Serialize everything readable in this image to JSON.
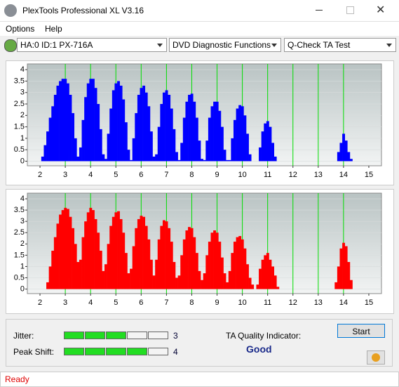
{
  "window": {
    "title": "PlexTools Professional XL V3.16",
    "menu": [
      "Options",
      "Help"
    ],
    "drive": "HA:0 ID:1  PX-716A",
    "function": "DVD Diagnostic Functions",
    "test": "Q-Check TA Test"
  },
  "chart_data": [
    {
      "type": "bar",
      "color": "#0000ff",
      "xlim": [
        1.5,
        15.5
      ],
      "xticks": [
        2,
        3,
        4,
        5,
        6,
        7,
        8,
        9,
        10,
        11,
        12,
        13,
        14,
        15
      ],
      "ylim": [
        -0.2,
        4.25
      ],
      "yticks": [
        0,
        0.5,
        1,
        1.5,
        2,
        2.5,
        3,
        3.5,
        4
      ],
      "grid": true,
      "vlines": [
        3,
        4,
        5,
        6,
        7,
        8,
        9,
        10,
        11,
        12,
        13,
        14
      ],
      "vline_color": "#00dd00",
      "x": [
        2.0,
        2.1,
        2.2,
        2.3,
        2.4,
        2.5,
        2.6,
        2.7,
        2.8,
        2.9,
        3.0,
        3.1,
        3.2,
        3.3,
        3.4,
        3.5,
        3.6,
        3.7,
        3.8,
        3.9,
        4.0,
        4.1,
        4.2,
        4.3,
        4.4,
        4.5,
        4.6,
        4.7,
        4.8,
        4.9,
        5.0,
        5.1,
        5.2,
        5.3,
        5.4,
        5.5,
        5.6,
        5.7,
        5.8,
        5.9,
        6.0,
        6.1,
        6.2,
        6.3,
        6.4,
        6.5,
        6.6,
        6.7,
        6.8,
        6.9,
        7.0,
        7.1,
        7.2,
        7.3,
        7.4,
        7.5,
        7.6,
        7.7,
        7.8,
        7.9,
        8.0,
        8.1,
        8.2,
        8.3,
        8.4,
        8.5,
        8.6,
        8.7,
        8.8,
        8.9,
        9.0,
        9.1,
        9.2,
        9.3,
        9.4,
        9.5,
        9.6,
        9.7,
        9.8,
        9.9,
        10.0,
        10.1,
        10.2,
        10.3,
        10.4,
        10.5,
        10.6,
        10.7,
        10.8,
        10.9,
        11.0,
        11.1,
        11.2,
        11.3,
        11.4,
        11.5,
        11.6,
        11.7,
        11.8,
        11.9,
        12.0,
        12.1,
        12.2,
        12.3,
        12.4,
        12.5,
        12.6,
        12.7,
        12.8,
        12.9,
        13.0,
        13.1,
        13.2,
        13.3,
        13.4,
        13.5,
        13.6,
        13.7,
        13.8,
        13.9,
        14.0,
        14.1,
        14.2,
        14.3,
        14.4,
        14.5,
        14.6,
        14.7
      ],
      "values": [
        0,
        0.2,
        0.7,
        1.3,
        1.9,
        2.4,
        2.9,
        3.3,
        3.5,
        3.6,
        3.6,
        3.4,
        2.9,
        2.1,
        1.0,
        0.2,
        0.6,
        1.8,
        2.8,
        3.4,
        3.6,
        3.6,
        3.2,
        2.5,
        1.4,
        0.3,
        0.1,
        1.2,
        2.3,
        3.1,
        3.4,
        3.5,
        3.3,
        2.7,
        1.7,
        0.5,
        0.05,
        1.0,
        2.1,
        2.9,
        3.2,
        3.3,
        3.0,
        2.4,
        1.3,
        0.2,
        0.3,
        1.5,
        2.5,
        3.0,
        3.1,
        2.9,
        2.3,
        1.4,
        0.4,
        0.05,
        0.8,
        1.9,
        2.6,
        2.9,
        2.95,
        2.6,
        1.9,
        0.9,
        0.1,
        0.05,
        0.9,
        1.9,
        2.4,
        2.6,
        2.6,
        2.2,
        1.5,
        0.5,
        0.05,
        0.05,
        1.0,
        1.8,
        2.3,
        2.45,
        2.4,
        2.0,
        1.2,
        0.3,
        0,
        0,
        0,
        0.6,
        1.3,
        1.65,
        1.75,
        1.5,
        0.8,
        0.2,
        0,
        0,
        0,
        0,
        0,
        0,
        0,
        0,
        0,
        0,
        0,
        0,
        0,
        0,
        0,
        0,
        0,
        0,
        0,
        0,
        0,
        0,
        0,
        0,
        0.4,
        0.8,
        1.2,
        0.9,
        0.4,
        0.1,
        0,
        0,
        0,
        0
      ]
    },
    {
      "type": "bar",
      "color": "#ff0000",
      "xlim": [
        1.5,
        15.5
      ],
      "xticks": [
        2,
        3,
        4,
        5,
        6,
        7,
        8,
        9,
        10,
        11,
        12,
        13,
        14,
        15
      ],
      "ylim": [
        -0.2,
        4.25
      ],
      "yticks": [
        0,
        0.5,
        1,
        1.5,
        2,
        2.5,
        3,
        3.5,
        4
      ],
      "grid": true,
      "vlines": [
        3,
        4,
        5,
        6,
        7,
        8,
        9,
        10,
        11,
        12,
        13,
        14
      ],
      "vline_color": "#00dd00",
      "x": [
        2.0,
        2.1,
        2.2,
        2.3,
        2.4,
        2.5,
        2.6,
        2.7,
        2.8,
        2.9,
        3.0,
        3.1,
        3.2,
        3.3,
        3.4,
        3.5,
        3.6,
        3.7,
        3.8,
        3.9,
        4.0,
        4.1,
        4.2,
        4.3,
        4.4,
        4.5,
        4.6,
        4.7,
        4.8,
        4.9,
        5.0,
        5.1,
        5.2,
        5.3,
        5.4,
        5.5,
        5.6,
        5.7,
        5.8,
        5.9,
        6.0,
        6.1,
        6.2,
        6.3,
        6.4,
        6.5,
        6.6,
        6.7,
        6.8,
        6.9,
        7.0,
        7.1,
        7.2,
        7.3,
        7.4,
        7.5,
        7.6,
        7.7,
        7.8,
        7.9,
        8.0,
        8.1,
        8.2,
        8.3,
        8.4,
        8.5,
        8.6,
        8.7,
        8.8,
        8.9,
        9.0,
        9.1,
        9.2,
        9.3,
        9.4,
        9.5,
        9.6,
        9.7,
        9.8,
        9.9,
        10.0,
        10.1,
        10.2,
        10.3,
        10.4,
        10.5,
        10.6,
        10.7,
        10.8,
        10.9,
        11.0,
        11.1,
        11.2,
        11.3,
        11.4,
        11.5,
        11.6,
        11.7,
        11.8,
        11.9,
        12.0,
        12.1,
        12.2,
        12.3,
        12.4,
        12.5,
        12.6,
        12.7,
        12.8,
        12.9,
        13.0,
        13.1,
        13.2,
        13.3,
        13.4,
        13.5,
        13.6,
        13.7,
        13.8,
        13.9,
        14.0,
        14.1,
        14.2,
        14.3,
        14.4,
        14.5,
        14.6,
        14.7
      ],
      "values": [
        0,
        0,
        0,
        0.3,
        1.0,
        1.7,
        2.3,
        2.9,
        3.3,
        3.5,
        3.6,
        3.55,
        3.2,
        2.7,
        2.0,
        1.2,
        1.3,
        2.3,
        3.0,
        3.4,
        3.6,
        3.5,
        3.1,
        2.5,
        1.7,
        0.8,
        1.1,
        2.0,
        2.8,
        3.2,
        3.4,
        3.45,
        3.1,
        2.5,
        1.6,
        0.7,
        0.9,
        1.9,
        2.7,
        3.1,
        3.25,
        3.2,
        2.8,
        2.2,
        1.3,
        0.6,
        1.3,
        2.2,
        2.8,
        3.05,
        3.0,
        2.7,
        2.1,
        1.2,
        0.5,
        0.6,
        1.5,
        2.2,
        2.6,
        2.75,
        2.7,
        2.3,
        1.6,
        0.8,
        0.4,
        0.7,
        1.5,
        2.1,
        2.5,
        2.6,
        2.5,
        2.1,
        1.4,
        0.7,
        0.3,
        0.8,
        1.6,
        2.1,
        2.3,
        2.35,
        2.2,
        1.8,
        1.1,
        0.5,
        0.2,
        0,
        0.2,
        0.9,
        1.3,
        1.5,
        1.6,
        1.3,
        1.0,
        0.6,
        0.1,
        0,
        0,
        0,
        0,
        0,
        0,
        0,
        0,
        0,
        0,
        0,
        0,
        0,
        0,
        0,
        0,
        0,
        0,
        0,
        0,
        0,
        0,
        0.3,
        1.0,
        1.8,
        2.05,
        1.9,
        1.2,
        0.4,
        0,
        0,
        0,
        0
      ]
    }
  ],
  "results": {
    "jitter_label": "Jitter:",
    "jitter": 3,
    "peak_shift_label": "Peak Shift:",
    "peak_shift": 4,
    "ta_label": "TA Quality Indicator:",
    "ta_value": "Good",
    "start": "Start"
  },
  "status": "Ready"
}
